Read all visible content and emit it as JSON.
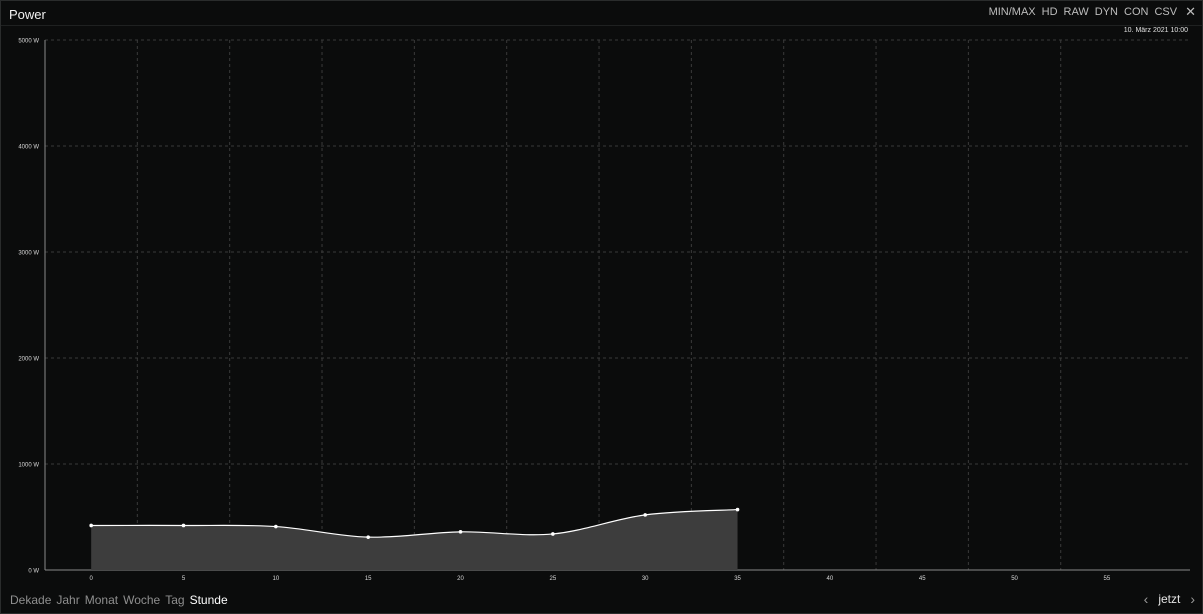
{
  "window": {
    "title": "Power",
    "toolbar": [
      "MIN/MAX",
      "HD",
      "RAW",
      "DYN",
      "CON",
      "CSV"
    ],
    "close_icon": "close-icon",
    "date": "10. März 2021 10:00"
  },
  "footer": {
    "periods": [
      "Dekade",
      "Jahr",
      "Monat",
      "Woche",
      "Tag",
      "Stunde"
    ],
    "active": "Stunde",
    "now_label": "jetzt",
    "prev_icon": "chevron-left-icon",
    "next_icon": "chevron-right-icon"
  },
  "colors": {
    "background": "#0b0c0c",
    "line": "#ffffff",
    "area": "#3d3d3d",
    "grid": "#3a3a3a"
  },
  "chart_data": {
    "type": "area",
    "title": "",
    "xlabel": "",
    "ylabel": "",
    "xlim": [
      -2.5,
      59.5
    ],
    "ylim": [
      0,
      5000
    ],
    "x_ticks": [
      0,
      5,
      10,
      15,
      20,
      25,
      30,
      35,
      40,
      45,
      50,
      55
    ],
    "y_ticks": [
      0,
      1000,
      2000,
      3000,
      4000,
      5000
    ],
    "y_tick_labels": [
      "0 W",
      "1000 W",
      "2000 W",
      "3000 W",
      "4000 W",
      "5000 W"
    ],
    "series": [
      {
        "x": [
          0,
          5,
          10,
          15,
          20,
          25,
          30,
          35
        ],
        "values": [
          420,
          420,
          410,
          310,
          360,
          340,
          520,
          570
        ]
      }
    ],
    "grid": true,
    "smooth": true
  }
}
